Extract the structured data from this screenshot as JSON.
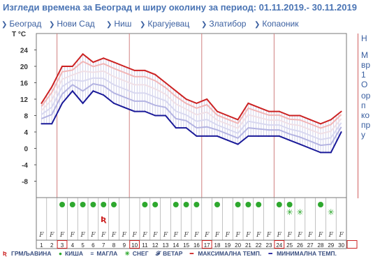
{
  "title": "Изгледи времена за Београд и ширу околину за период: 01.11.2019.- 30.11.2019",
  "nav": [
    "Београд",
    "Нови Сад",
    "Ниш",
    "Крагујевац",
    "Златибор",
    "Копаоник"
  ],
  "side_text": [
    "Н",
    "М",
    "вр",
    "1",
    "О",
    "ор",
    "п",
    "ко",
    "пр",
    "у"
  ],
  "chart_data": {
    "type": "line",
    "ylabel": "T °C",
    "ylim": [
      -12,
      28
    ],
    "yticks": [
      24,
      20,
      16,
      12,
      8,
      4,
      0,
      -4,
      -8
    ],
    "x": [
      1,
      2,
      3,
      4,
      5,
      6,
      7,
      8,
      9,
      10,
      11,
      12,
      13,
      14,
      15,
      16,
      17,
      18,
      19,
      20,
      21,
      22,
      23,
      24,
      25,
      26,
      27,
      28,
      29,
      30
    ],
    "series": [
      {
        "name": "МАКСИМАЛНА ТЕМП.",
        "color": "#cc2222",
        "values": [
          11,
          15,
          20,
          20,
          23,
          21,
          22,
          21,
          20,
          19,
          19,
          18,
          16,
          14,
          12,
          11,
          12,
          9,
          8,
          7,
          11,
          10,
          9,
          9,
          8,
          8,
          7,
          6,
          7,
          9
        ]
      },
      {
        "name": "МИНИМАЛНА ТЕМП.",
        "color": "#1a1a99",
        "values": [
          6,
          6,
          11,
          14,
          11,
          14,
          13,
          11,
          10,
          9,
          9,
          8,
          8,
          5,
          5,
          3,
          3,
          3,
          2,
          1,
          3,
          3,
          3,
          3,
          2,
          1,
          0,
          -1,
          -1,
          4
        ]
      }
    ],
    "highlighted_days": [
      3,
      10,
      17,
      24,
      31
    ],
    "weather": {
      "rain_days": [
        3,
        4,
        5,
        6,
        7,
        8,
        11,
        12,
        14,
        15,
        16,
        18,
        20,
        21,
        22,
        24,
        25,
        28
      ],
      "storm_days": [
        7
      ],
      "snow_days": [
        25,
        26,
        29
      ],
      "wind_days": [
        1,
        2,
        3,
        4,
        5,
        6,
        7,
        8,
        9,
        10,
        11,
        12,
        13,
        14,
        15,
        16,
        17,
        18,
        19,
        20,
        21,
        22,
        23,
        24,
        25,
        26,
        27,
        28,
        29,
        30
      ]
    }
  },
  "legend": {
    "storm": "ГРМЉАВИНА",
    "rain": "КИША",
    "fog": "МАГЛА",
    "snow": "СНЕГ",
    "wind": "ВЕТАР",
    "max": "МАКСИМАЛНА ТЕМП.",
    "min": "МИНИМАЛНА ТЕМП."
  }
}
